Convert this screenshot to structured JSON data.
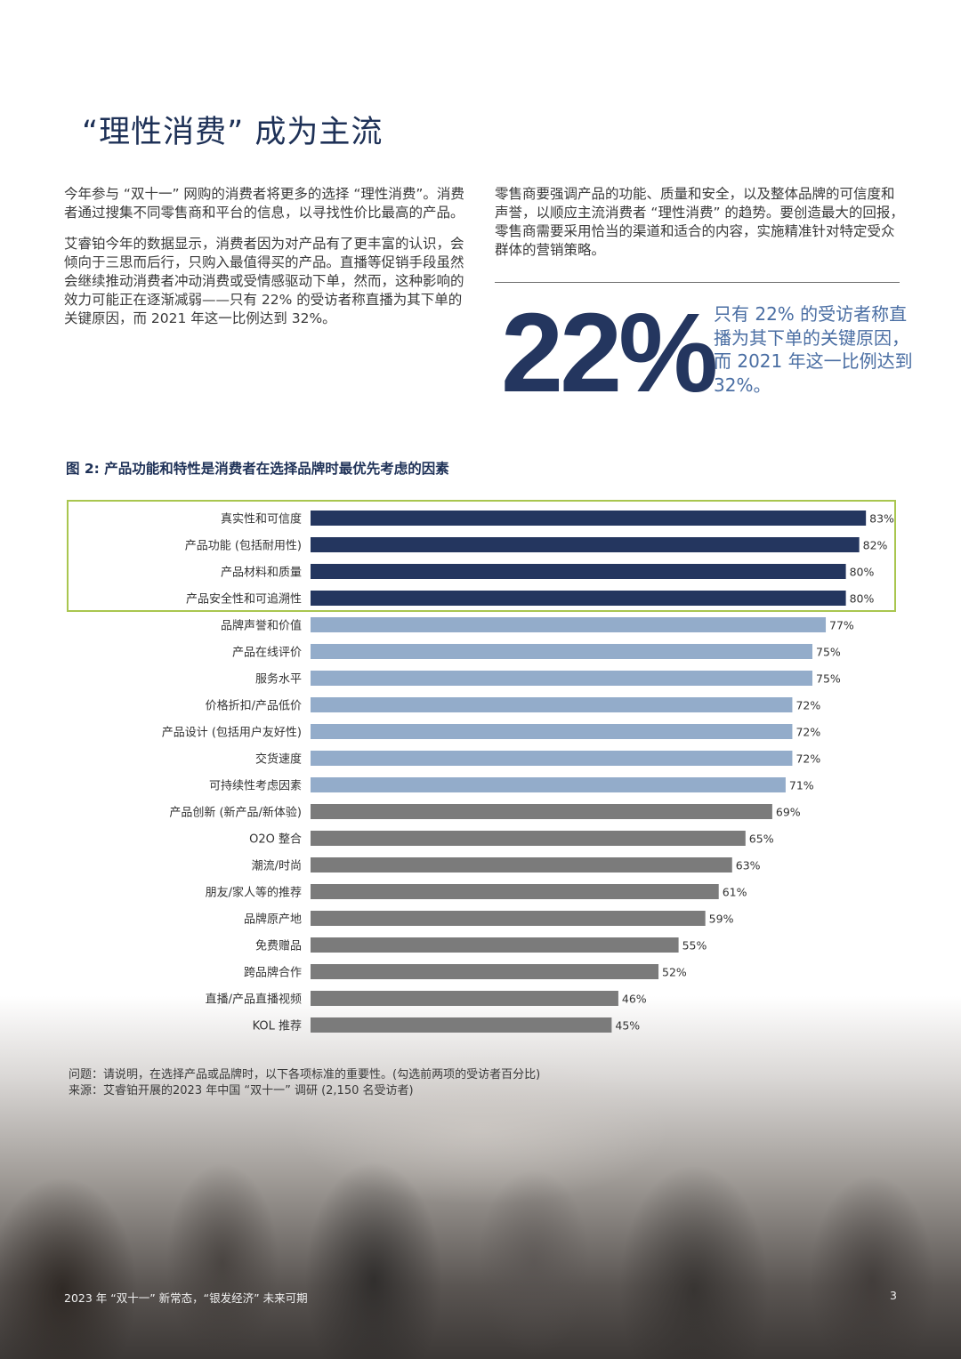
{
  "title": "“理性消费” 成为主流",
  "left_column": {
    "p1": "今年参与 “双十一” 网购的消费者将更多的选择 “理性消费”。消费者通过搜集不同零售商和平台的信息，以寻找性价比最高的产品。",
    "p2": "艾睿铂今年的数据显示，消费者因为对产品有了更丰富的认识，会倾向于三思而后行，只购入最值得买的产品。直播等促销手段虽然会继续推动消费者冲动消费或受情感驱动下单，然而，这种影响的效力可能正在逐渐减弱——只有 22% 的受访者称直播为其下单的关键原因，而 2021 年这一比例达到 32%。"
  },
  "right_column": {
    "p1": "零售商要强调产品的功能、质量和安全，以及整体品牌的可信度和声誉，以顺应主流消费者 “理性消费” 的趋势。要创造最大的回报，零售商需要采用恰当的渠道和适合的内容，实施精准针对特定受众群体的营销策略。"
  },
  "stat": {
    "value": "22%",
    "description": "只有 22% 的受访者称直播为其下单的关键原因，而 2021 年这一比例达到 32%。"
  },
  "figure": {
    "title": "图 2: 产品功能和特性是消费者在选择品牌时最优先考虑的因素",
    "question": "问题：请说明，在选择产品或品牌时，以下各项标准的重要性。(勾选前两项的受访者百分比)",
    "source": "来源：艾睿铂开展的2023 年中国 “双十一” 调研 (2,150 名受访者)"
  },
  "chart_data": {
    "type": "bar",
    "orientation": "horizontal",
    "unit": "%",
    "xlim": [
      0,
      100
    ],
    "categories": [
      "真实性和可信度",
      "产品功能 (包括耐用性)",
      "产品材料和质量",
      "产品安全性和可追溯性",
      "品牌声誉和价值",
      "产品在线评价",
      "服务水平",
      "价格折扣/产品低价",
      "产品设计 (包括用户友好性)",
      "交货速度",
      "可持续性考虑因素",
      "产品创新 (新产品/新体验)",
      "O2O 整合",
      "潮流/时尚",
      "朋友/家人等的推荐",
      "品牌原产地",
      "免费赠品",
      "跨品牌合作",
      "直播/产品直播视频",
      "KOL 推荐"
    ],
    "values": [
      83,
      82,
      80,
      80,
      77,
      75,
      75,
      72,
      72,
      72,
      71,
      69,
      65,
      63,
      61,
      59,
      55,
      52,
      46,
      45
    ],
    "value_labels": [
      "83%",
      "82%",
      "80%",
      "80%",
      "77%",
      "75%",
      "75%",
      "72%",
      "72%",
      "72%",
      "71%",
      "69%",
      "65%",
      "63%",
      "61%",
      "59%",
      "55%",
      "52%",
      "46%",
      "45%"
    ],
    "groups": [
      "dark",
      "dark",
      "dark",
      "dark",
      "light",
      "light",
      "light",
      "light",
      "light",
      "light",
      "light",
      "gray",
      "gray",
      "gray",
      "gray",
      "gray",
      "gray",
      "gray",
      "gray",
      "gray"
    ],
    "colors": {
      "dark": "#24365f",
      "light": "#93acca",
      "gray": "#7b7b7b",
      "highlight_border": "#a9c64f"
    }
  },
  "footer": {
    "text": "2023 年 “双十一” 新常态，“银发经济” 未来可期",
    "page": "3"
  }
}
